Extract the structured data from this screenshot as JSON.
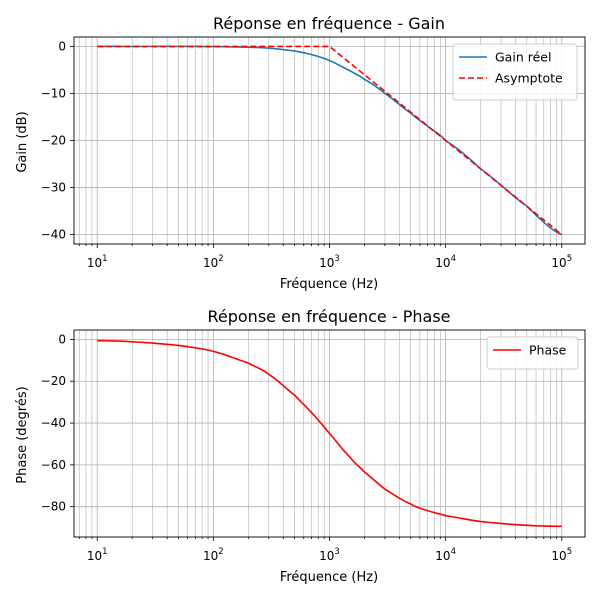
{
  "chart_data": [
    {
      "type": "line",
      "title": "Réponse en fréquence - Gain",
      "xlabel": "Fréquence (Hz)",
      "ylabel": "Gain (dB)",
      "xscale": "log",
      "xlim": [
        10,
        100000
      ],
      "ylim": [
        -42,
        2
      ],
      "xticks": [
        10,
        100,
        1000,
        10000,
        100000
      ],
      "xtick_labels": [
        {
          "base": "10",
          "exp": "1"
        },
        {
          "base": "10",
          "exp": "2"
        },
        {
          "base": "10",
          "exp": "3"
        },
        {
          "base": "10",
          "exp": "4"
        },
        {
          "base": "10",
          "exp": "5"
        }
      ],
      "yticks": [
        0,
        -10,
        -20,
        -30,
        -40
      ],
      "ytick_labels": [
        "0",
        "−10",
        "−20",
        "−30",
        "−40"
      ],
      "grid": "major and minor",
      "legend_position": "top-right",
      "series": [
        {
          "name": "Gain réel",
          "color": "#1f77b4",
          "style": "solid",
          "x": [
            10,
            20,
            50,
            100,
            200,
            300,
            500,
            700,
            1000,
            1500,
            2000,
            3000,
            5000,
            7000,
            10000,
            20000,
            50000,
            100000
          ],
          "y": [
            0,
            -0.02,
            -0.01,
            -0.04,
            -0.17,
            -0.37,
            -0.97,
            -1.74,
            -3.01,
            -5.16,
            -6.99,
            -10.0,
            -14.15,
            -16.99,
            -20.04,
            -26.02,
            -33.98,
            -40.0
          ]
        },
        {
          "name": "Asymptote",
          "color": "#ff0000",
          "style": "dashed",
          "x": [
            10,
            1000,
            100000
          ],
          "y": [
            0,
            0,
            -40
          ]
        }
      ]
    },
    {
      "type": "line",
      "title": "Réponse en fréquence - Phase",
      "xlabel": "Fréquence (Hz)",
      "ylabel": "Phase (degrés)",
      "xscale": "log",
      "xlim": [
        10,
        100000
      ],
      "ylim": [
        -94.5,
        4.5
      ],
      "xticks": [
        10,
        100,
        1000,
        10000,
        100000
      ],
      "xtick_labels": [
        {
          "base": "10",
          "exp": "1"
        },
        {
          "base": "10",
          "exp": "2"
        },
        {
          "base": "10",
          "exp": "3"
        },
        {
          "base": "10",
          "exp": "4"
        },
        {
          "base": "10",
          "exp": "5"
        }
      ],
      "yticks": [
        0,
        -20,
        -40,
        -60,
        -80
      ],
      "ytick_labels": [
        "0",
        "−20",
        "−40",
        "−60",
        "−80"
      ],
      "grid": "major and minor",
      "legend_position": "top-right",
      "series": [
        {
          "name": "Phase",
          "color": "#ff0000",
          "style": "solid",
          "x": [
            10,
            20,
            50,
            100,
            200,
            300,
            500,
            700,
            1000,
            1500,
            2000,
            3000,
            5000,
            7000,
            10000,
            20000,
            50000,
            100000
          ],
          "y": [
            -0.57,
            -1.15,
            -2.86,
            -5.71,
            -11.3,
            -16.7,
            -26.6,
            -35.0,
            -45.0,
            -56.3,
            -63.4,
            -71.6,
            -78.7,
            -81.9,
            -84.3,
            -87.1,
            -88.9,
            -89.4
          ]
        }
      ]
    }
  ]
}
